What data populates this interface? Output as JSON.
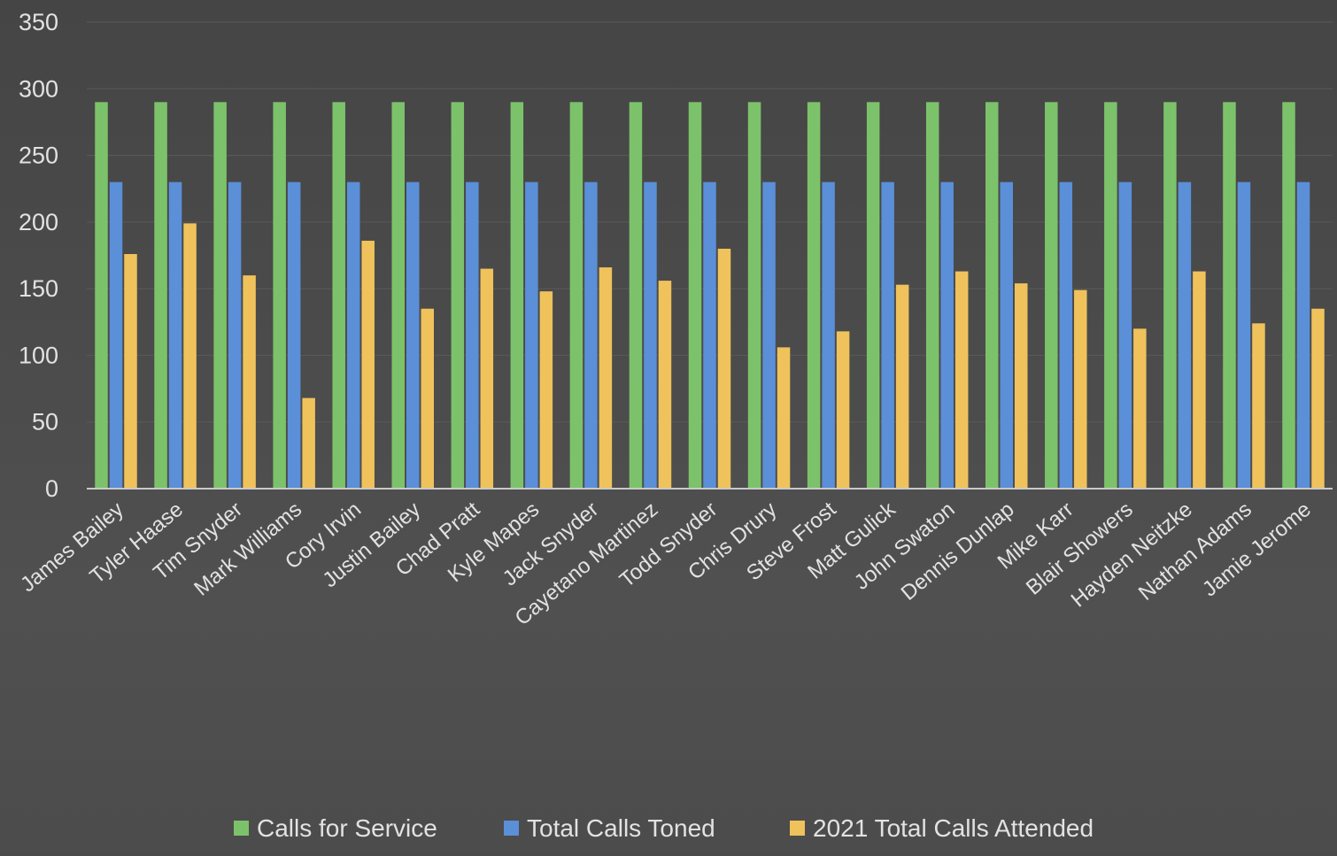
{
  "chart_data": {
    "type": "bar",
    "title": "",
    "xlabel": "",
    "ylabel": "",
    "ylim": [
      0,
      350
    ],
    "yticks": [
      0,
      50,
      100,
      150,
      200,
      250,
      300,
      350
    ],
    "grid": true,
    "legend_position": "bottom",
    "categories": [
      "James Bailey",
      "Tyler Haase",
      "Tim Snyder",
      "Mark Williams",
      "Cory Irvin",
      "Justin Bailey",
      "Chad Pratt",
      "Kyle Mapes",
      "Jack Snyder",
      "Cayetano Martinez",
      "Todd Snyder",
      "Chris Drury",
      "Steve Frost",
      "Matt Gulick",
      "John Swaton",
      "Dennis Dunlap",
      "Mike Karr",
      "Blair Showers",
      "Hayden Neitzke",
      "Nathan Adams",
      "Jamie Jerome"
    ],
    "series": [
      {
        "name": "Calls for Service",
        "color": "#7cc26a",
        "values": [
          290,
          290,
          290,
          290,
          290,
          290,
          290,
          290,
          290,
          290,
          290,
          290,
          290,
          290,
          290,
          290,
          290,
          290,
          290,
          290,
          290
        ]
      },
      {
        "name": "Total Calls Toned",
        "color": "#5b8fd8",
        "values": [
          230,
          230,
          230,
          230,
          230,
          230,
          230,
          230,
          230,
          230,
          230,
          230,
          230,
          230,
          230,
          230,
          230,
          230,
          230,
          230,
          230
        ]
      },
      {
        "name": "2021 Total Calls Attended",
        "color": "#efc25c",
        "values": [
          176,
          199,
          160,
          68,
          186,
          135,
          165,
          148,
          166,
          156,
          180,
          106,
          118,
          153,
          163,
          154,
          149,
          120,
          163,
          124,
          135
        ]
      }
    ]
  }
}
